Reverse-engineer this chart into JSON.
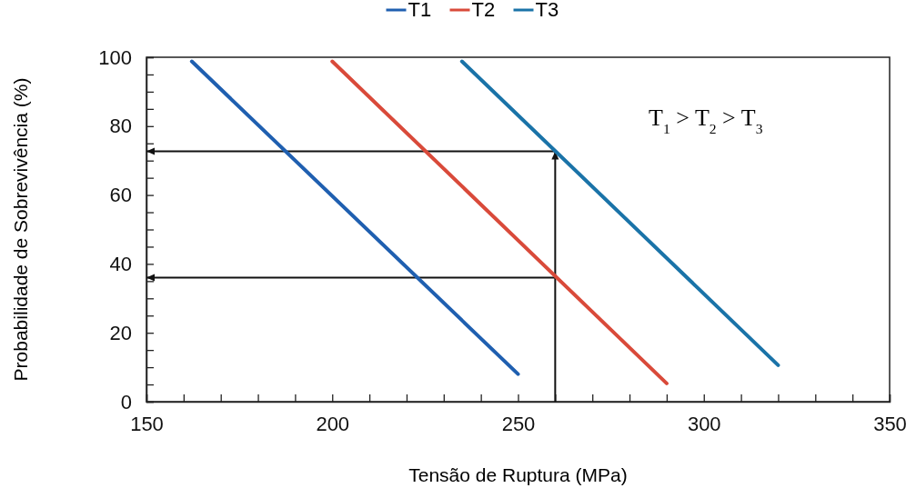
{
  "chart_data": {
    "type": "line",
    "xlabel": "Tensão de Ruptura (MPa)",
    "ylabel": "Probabilidade de Sobrevivência (%)",
    "series": [
      {
        "name": "T1",
        "color": "#1f5fb0",
        "x": [
          162.2,
          250
        ],
        "values": [
          98.8,
          8.0
        ]
      },
      {
        "name": "T2",
        "color": "#d94a3a",
        "x": [
          200,
          290
        ],
        "values": [
          98.8,
          5.3
        ]
      },
      {
        "name": "T3",
        "color": "#1a73a8",
        "x": [
          234.9,
          320
        ],
        "values": [
          98.8,
          10.6
        ]
      }
    ],
    "xlim": [
      150,
      350
    ],
    "xticks": [
      150,
      {
        "value": 160,
        "label": null
      },
      {
        "value": 170,
        "label": null
      },
      {
        "value": 180,
        "label": null
      },
      {
        "value": 190,
        "label": null
      },
      200,
      {
        "value": 210,
        "label": null
      },
      {
        "value": 220,
        "label": null
      },
      {
        "value": 230,
        "label": null
      },
      {
        "value": 240,
        "label": null
      },
      250,
      {
        "value": 260,
        "label": null
      },
      {
        "value": 270,
        "label": null
      },
      {
        "value": 280,
        "label": null
      },
      {
        "value": 290,
        "label": null
      },
      300,
      {
        "value": 310,
        "label": null
      },
      {
        "value": 320,
        "label": null
      },
      {
        "value": 330,
        "label": null
      },
      {
        "value": 340,
        "label": null
      },
      350
    ],
    "ylim": [
      0,
      100
    ],
    "yticks": [
      0,
      {
        "value": 5,
        "label": null
      },
      {
        "value": 10,
        "label": null
      },
      {
        "value": 15,
        "label": null
      },
      20,
      {
        "value": 25,
        "label": null
      },
      {
        "value": 30,
        "label": null
      },
      {
        "value": 35,
        "label": null
      },
      40,
      {
        "value": 45,
        "label": null
      },
      {
        "value": 50,
        "label": null
      },
      {
        "value": 55,
        "label": null
      },
      60,
      {
        "value": 65,
        "label": null
      },
      {
        "value": 70,
        "label": null
      },
      {
        "value": 75,
        "label": null
      },
      80,
      {
        "value": 85,
        "label": null
      },
      {
        "value": 90,
        "label": null
      },
      {
        "value": 95,
        "label": null
      },
      100
    ],
    "ref_lines": [
      {
        "axis": "x",
        "value": 260,
        "color": "#111111"
      },
      {
        "axis": "y",
        "value": 72.7,
        "color": "#111111"
      },
      {
        "axis": "y",
        "value": 36,
        "color": "#111111"
      }
    ],
    "annotations": [
      "T$_{1}$ > T$_{2}$ > T$_{3}$"
    ],
    "legend": "top",
    "grid": false,
    "marker": "none",
    "line_style": "solid"
  }
}
